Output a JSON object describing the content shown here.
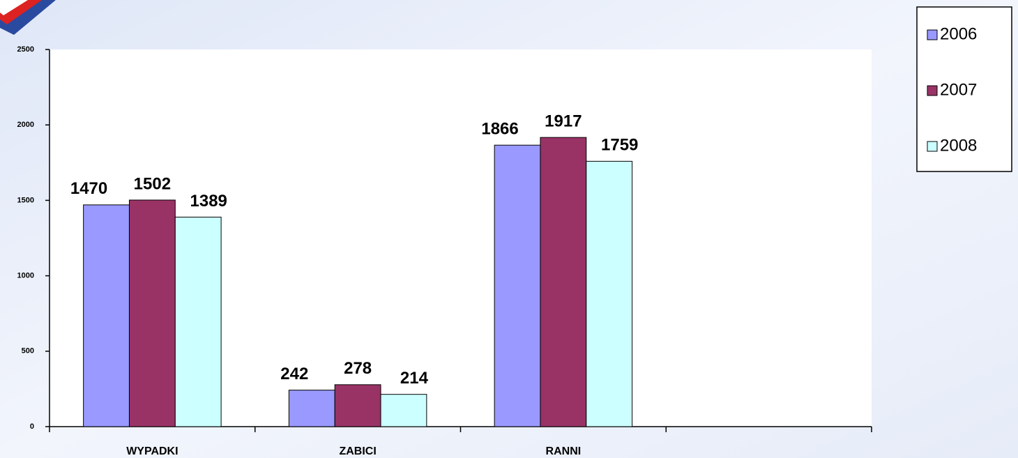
{
  "chart_data": {
    "type": "bar",
    "categories": [
      "WYPADKI",
      "ZABICI",
      "RANNI",
      null
    ],
    "series": [
      {
        "name": "2006",
        "color": "#9999ff",
        "values": [
          1470,
          242,
          1866,
          null
        ]
      },
      {
        "name": "2007",
        "color": "#993366",
        "values": [
          1502,
          278,
          1917,
          null
        ]
      },
      {
        "name": "2008",
        "color": "#ccffff",
        "values": [
          1389,
          214,
          1759,
          null
        ]
      }
    ],
    "ylim": [
      0,
      2500
    ],
    "yticks": [
      0,
      500,
      1000,
      1500,
      2000,
      2500
    ],
    "grid": false,
    "legend": "right"
  }
}
